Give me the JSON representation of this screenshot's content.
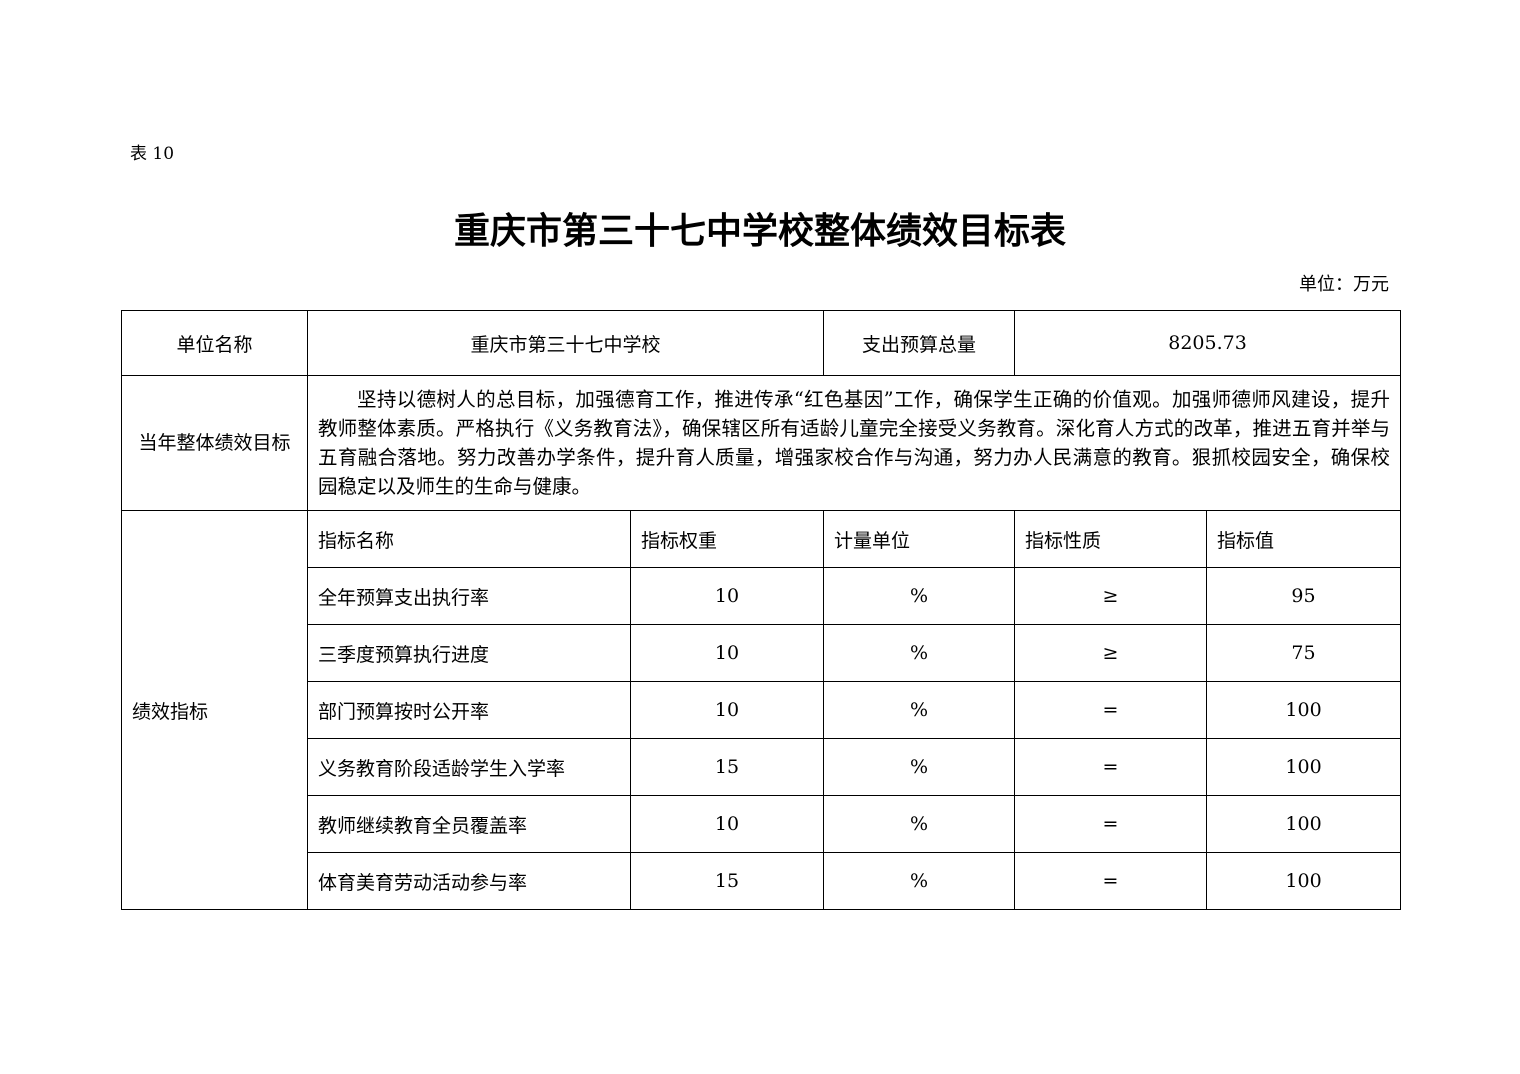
{
  "table_number": "表 10",
  "title": "重庆市第三十七中学校整体绩效目标表",
  "unit": "单位：万元",
  "unit_name_label": "单位名称",
  "unit_name": "重庆市第三十七中学校",
  "budget_label": "支出预算总量",
  "budget_total": "8205.73",
  "goal_label": "当年整体绩效目标",
  "goal_text": "坚持以德树人的总目标，加强德育工作，推进传承“红色基因”工作，确保学生正确的价值观。加强师德师风建设，提升教师整体素质。严格执行《义务教育法》，确保辖区所有适龄儿童完全接受义务教育。深化育人方式的改革，推进五育并举与五育融合落地。努力改善办学条件，提升育人质量，增强家校合作与沟通，努力办人民满意的教育。狠抓校园安全，确保校园稳定以及师生的生命与健康。",
  "indicators_label": "绩效指标",
  "headers": [
    "指标名称",
    "指标权重",
    "计量单位",
    "指标性质",
    "指标值"
  ],
  "rows": [
    [
      "全年预算支出执行率",
      "10",
      "%",
      "≥",
      "95"
    ],
    [
      "三季度预算执行进度",
      "10",
      "%",
      "≥",
      "75"
    ],
    [
      "部门预算按时公开率",
      "10",
      "%",
      "=",
      "100"
    ],
    [
      "义务教育阶段适龄学生入学率",
      "15",
      "%",
      "=",
      "100"
    ],
    [
      "教师继续教育全员覆盖率",
      "10",
      "%",
      "=",
      "100"
    ],
    [
      "体育美育劳动活动参与率",
      "15",
      "%",
      "=",
      "100"
    ]
  ]
}
